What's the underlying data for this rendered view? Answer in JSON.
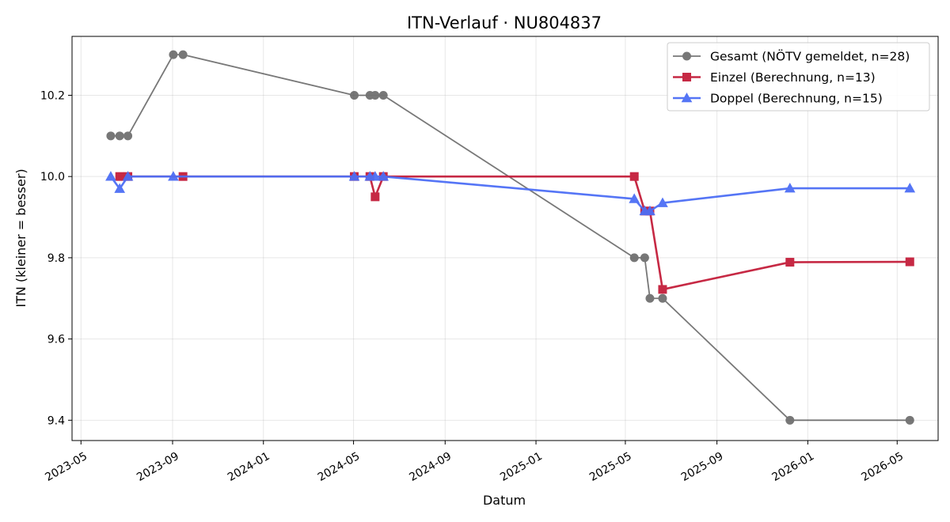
{
  "chart_data": {
    "type": "line",
    "title": "ITN-Verlauf · NU804837",
    "xlabel": "Datum",
    "ylabel": "ITN  (kleiner = besser)",
    "xlim": [
      "2023-04-19",
      "2026-06-25"
    ],
    "ylim": [
      9.35,
      10.345
    ],
    "x_ticks": [
      "2023-05",
      "2023-09",
      "2024-01",
      "2024-05",
      "2024-09",
      "2025-01",
      "2025-05",
      "2025-09",
      "2026-01",
      "2026-05"
    ],
    "y_ticks": [
      9.4,
      9.6,
      9.8,
      10.0,
      10.2
    ],
    "grid": true,
    "legend_position": "top-right",
    "series": [
      {
        "name": "Gesamt (NÖTV gemeldet, n=28)",
        "color": "#444444",
        "marker": "circle",
        "points": [
          {
            "x": "2023-06-10",
            "y": 10.1
          },
          {
            "x": "2023-06-22",
            "y": 10.1
          },
          {
            "x": "2023-07-03",
            "y": 10.1
          },
          {
            "x": "2023-09-02",
            "y": 10.3
          },
          {
            "x": "2023-09-15",
            "y": 10.3
          },
          {
            "x": "2024-05-02",
            "y": 10.2
          },
          {
            "x": "2024-05-23",
            "y": 10.2
          },
          {
            "x": "2024-05-30",
            "y": 10.2
          },
          {
            "x": "2024-06-10",
            "y": 10.2
          },
          {
            "x": "2025-05-13",
            "y": 9.8
          },
          {
            "x": "2025-05-27",
            "y": 9.8
          },
          {
            "x": "2025-06-03",
            "y": 9.7
          },
          {
            "x": "2025-06-20",
            "y": 9.7
          },
          {
            "x": "2025-12-08",
            "y": 9.4
          },
          {
            "x": "2026-05-18",
            "y": 9.4
          }
        ]
      },
      {
        "name": "Einzel (Berechnung, n=13)",
        "color": "#c41e3a",
        "marker": "square",
        "points": [
          {
            "x": "2023-06-22",
            "y": 10.0
          },
          {
            "x": "2023-07-03",
            "y": 10.0
          },
          {
            "x": "2023-09-15",
            "y": 10.0
          },
          {
            "x": "2024-05-02",
            "y": 10.0
          },
          {
            "x": "2024-05-23",
            "y": 10.0
          },
          {
            "x": "2024-05-30",
            "y": 9.95
          },
          {
            "x": "2024-06-10",
            "y": 10.0
          },
          {
            "x": "2025-05-13",
            "y": 10.0
          },
          {
            "x": "2025-05-27",
            "y": 9.915
          },
          {
            "x": "2025-06-03",
            "y": 9.915
          },
          {
            "x": "2025-06-20",
            "y": 9.722
          },
          {
            "x": "2025-12-08",
            "y": 9.789
          },
          {
            "x": "2026-05-18",
            "y": 9.79
          }
        ]
      },
      {
        "name": "Doppel (Berechnung, n=15)",
        "color": "#4c6ef5",
        "marker": "triangle",
        "points": [
          {
            "x": "2023-06-10",
            "y": 10.0
          },
          {
            "x": "2023-06-22",
            "y": 9.97
          },
          {
            "x": "2023-07-03",
            "y": 10.0
          },
          {
            "x": "2023-09-02",
            "y": 10.0
          },
          {
            "x": "2024-05-02",
            "y": 10.0
          },
          {
            "x": "2024-05-23",
            "y": 10.0
          },
          {
            "x": "2024-05-30",
            "y": 10.0
          },
          {
            "x": "2024-06-10",
            "y": 10.0
          },
          {
            "x": "2025-05-13",
            "y": 9.945
          },
          {
            "x": "2025-05-27",
            "y": 9.915
          },
          {
            "x": "2025-06-03",
            "y": 9.915
          },
          {
            "x": "2025-06-20",
            "y": 9.935
          },
          {
            "x": "2025-12-08",
            "y": 9.971
          },
          {
            "x": "2026-05-18",
            "y": 9.971
          }
        ]
      }
    ]
  }
}
